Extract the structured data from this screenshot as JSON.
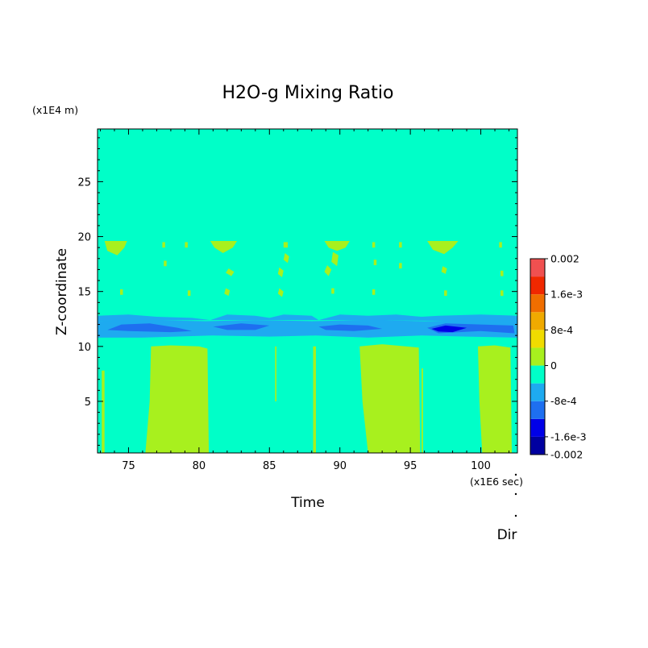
{
  "chart_data": {
    "type": "heatmap",
    "title": "H2O-g Mixing Ratio",
    "xlabel": "Time",
    "ylabel": "Z-coordinate",
    "x_unit": "(x1E6 sec)",
    "y_unit": "(x1E4 m)",
    "corner_label": "Dir",
    "xlim": [
      72.8,
      102.6
    ],
    "ylim": [
      0.3,
      29.8
    ],
    "x_ticks": [
      75,
      80,
      85,
      90,
      95,
      100
    ],
    "y_ticks": [
      5,
      10,
      15,
      20,
      25
    ],
    "colorbar": {
      "labels": [
        "0.002",
        "1.6e-3",
        "8e-4",
        "0",
        "-8e-4",
        "-1.6e-3",
        "-0.002"
      ],
      "label_values": [
        0.002,
        0.0016,
        0.0008,
        0,
        -0.0008,
        -0.0016,
        -0.002
      ],
      "levels": [
        {
          "from": -0.002,
          "to": -0.0016,
          "color": "#0000a0"
        },
        {
          "from": -0.0016,
          "to": -0.0012,
          "color": "#0000e8"
        },
        {
          "from": -0.0012,
          "to": -0.0008,
          "color": "#1e6ff0"
        },
        {
          "from": -0.0008,
          "to": -0.0004,
          "color": "#1eaaf0"
        },
        {
          "from": -0.0004,
          "to": 0,
          "color": "#00ffc8"
        },
        {
          "from": 0,
          "to": 0.0004,
          "color": "#a8f01e"
        },
        {
          "from": 0.0004,
          "to": 0.0008,
          "color": "#f0dc00"
        },
        {
          "from": 0.0008,
          "to": 0.0012,
          "color": "#f0aa00"
        },
        {
          "from": 0.0012,
          "to": 0.0016,
          "color": "#f06e00"
        },
        {
          "from": 0.0016,
          "to": 0.002,
          "color": "#f02800"
        },
        {
          "from": 0.002,
          "to": 0.0024,
          "color": "#f05050"
        }
      ]
    },
    "background_color": "#00ffc8",
    "regions": [
      {
        "level": 5,
        "pts": [
          [
            73.1,
            0.3
          ],
          [
            73.1,
            7.8
          ],
          [
            73.3,
            7.8
          ],
          [
            73.3,
            0.3
          ]
        ]
      },
      {
        "level": 5,
        "pts": [
          [
            76.2,
            0.3
          ],
          [
            76.5,
            5
          ],
          [
            76.6,
            10
          ],
          [
            78,
            10.1
          ],
          [
            80,
            10
          ],
          [
            80.6,
            9.8
          ],
          [
            80.7,
            0.3
          ]
        ]
      },
      {
        "level": 5,
        "pts": [
          [
            85.4,
            5
          ],
          [
            85.4,
            10
          ],
          [
            85.5,
            10
          ],
          [
            85.5,
            5
          ]
        ]
      },
      {
        "level": 5,
        "pts": [
          [
            88.1,
            0.3
          ],
          [
            88.1,
            10
          ],
          [
            88.3,
            10
          ],
          [
            88.3,
            0.3
          ]
        ]
      },
      {
        "level": 5,
        "pts": [
          [
            92,
            0.3
          ],
          [
            91.6,
            5
          ],
          [
            91.4,
            10
          ],
          [
            93,
            10.2
          ],
          [
            95.6,
            9.9
          ],
          [
            95.7,
            0.3
          ]
        ]
      },
      {
        "level": 5,
        "pts": [
          [
            95.8,
            0.3
          ],
          [
            95.8,
            8
          ],
          [
            95.9,
            8
          ],
          [
            95.9,
            0.3
          ]
        ]
      },
      {
        "level": 5,
        "pts": [
          [
            100.1,
            0.3
          ],
          [
            99.9,
            5
          ],
          [
            99.8,
            10
          ],
          [
            101,
            10.1
          ],
          [
            102.1,
            9.9
          ],
          [
            102.2,
            0.3
          ]
        ]
      },
      {
        "level": 3,
        "pts": [
          [
            72.8,
            10.8
          ],
          [
            72.8,
            12.3
          ],
          [
            76,
            12.4
          ],
          [
            80.5,
            12.3
          ],
          [
            84,
            12.4
          ],
          [
            88,
            12.3
          ],
          [
            92,
            12.4
          ],
          [
            96,
            12.3
          ],
          [
            100,
            12.4
          ],
          [
            102.6,
            12.3
          ],
          [
            102.6,
            10.8
          ],
          [
            99,
            10.9
          ],
          [
            95.8,
            11
          ],
          [
            92,
            10.8
          ],
          [
            88.3,
            11
          ],
          [
            85,
            10.9
          ],
          [
            81,
            11
          ],
          [
            76,
            10.8
          ]
        ]
      },
      {
        "level": 3,
        "pts": [
          [
            72.8,
            12.3
          ],
          [
            72.8,
            12.8
          ],
          [
            75,
            12.9
          ],
          [
            77,
            12.7
          ],
          [
            79.5,
            12.6
          ],
          [
            80.8,
            12.4
          ]
        ]
      },
      {
        "level": 3,
        "pts": [
          [
            80.8,
            12.4
          ],
          [
            82,
            12.9
          ],
          [
            84,
            12.8
          ],
          [
            85,
            12.6
          ],
          [
            86,
            12.9
          ],
          [
            88,
            12.8
          ],
          [
            88.5,
            12.4
          ]
        ]
      },
      {
        "level": 3,
        "pts": [
          [
            88.5,
            12.4
          ],
          [
            90,
            12.9
          ],
          [
            92,
            12.8
          ],
          [
            94,
            12.9
          ],
          [
            95.8,
            12.7
          ],
          [
            97,
            12.8
          ],
          [
            100,
            12.9
          ],
          [
            102.6,
            12.8
          ],
          [
            102.6,
            12.3
          ]
        ]
      },
      {
        "level": 2,
        "pts": [
          [
            73.5,
            11.5
          ],
          [
            74.5,
            12
          ],
          [
            76.5,
            12.1
          ],
          [
            78.5,
            11.7
          ],
          [
            79.5,
            11.4
          ],
          [
            78,
            11.3
          ],
          [
            75,
            11.4
          ]
        ]
      },
      {
        "level": 2,
        "pts": [
          [
            81,
            11.8
          ],
          [
            83,
            12.1
          ],
          [
            85,
            11.9
          ],
          [
            84,
            11.5
          ],
          [
            82,
            11.5
          ]
        ]
      },
      {
        "level": 2,
        "pts": [
          [
            88.5,
            11.8
          ],
          [
            90,
            12
          ],
          [
            92,
            11.9
          ],
          [
            93,
            11.6
          ],
          [
            91,
            11.4
          ],
          [
            89,
            11.5
          ]
        ]
      },
      {
        "level": 2,
        "pts": [
          [
            96.2,
            11.7
          ],
          [
            97.5,
            12.1
          ],
          [
            100,
            12
          ],
          [
            102.3,
            11.9
          ],
          [
            102.4,
            11.2
          ],
          [
            100,
            11.4
          ],
          [
            97,
            11.2
          ]
        ]
      },
      {
        "level": 1,
        "pts": [
          [
            96.5,
            11.6
          ],
          [
            97.5,
            11.9
          ],
          [
            99,
            11.7
          ],
          [
            98,
            11.3
          ],
          [
            97,
            11.35
          ]
        ]
      },
      {
        "level": 5,
        "pts": [
          [
            73.3,
            19.6
          ],
          [
            74.9,
            19.6
          ],
          [
            74.7,
            19
          ],
          [
            74.2,
            18.3
          ],
          [
            73.5,
            18.7
          ]
        ]
      },
      {
        "level": 5,
        "pts": [
          [
            80.8,
            19.6
          ],
          [
            82.7,
            19.6
          ],
          [
            82.4,
            19
          ],
          [
            81.7,
            18.5
          ],
          [
            81.1,
            19
          ]
        ]
      },
      {
        "level": 5,
        "pts": [
          [
            88.9,
            19.6
          ],
          [
            90.7,
            19.6
          ],
          [
            90.4,
            19
          ],
          [
            89.8,
            18.7
          ],
          [
            89.2,
            19
          ]
        ]
      },
      {
        "level": 5,
        "pts": [
          [
            96.2,
            19.6
          ],
          [
            98.4,
            19.6
          ],
          [
            98,
            19
          ],
          [
            97.4,
            18.4
          ],
          [
            96.6,
            18.8
          ]
        ]
      },
      {
        "level": 5,
        "pts": [
          [
            77.4,
            19.5
          ],
          [
            77.6,
            19.5
          ],
          [
            77.6,
            19
          ],
          [
            77.4,
            19
          ]
        ]
      },
      {
        "level": 5,
        "pts": [
          [
            79.0,
            19.5
          ],
          [
            79.2,
            19.5
          ],
          [
            79.2,
            19
          ],
          [
            79.0,
            19
          ]
        ]
      },
      {
        "level": 5,
        "pts": [
          [
            86.0,
            19.5
          ],
          [
            86.3,
            19.5
          ],
          [
            86.3,
            19
          ],
          [
            86.0,
            19
          ]
        ]
      },
      {
        "level": 5,
        "pts": [
          [
            92.3,
            19.5
          ],
          [
            92.5,
            19.5
          ],
          [
            92.5,
            19
          ],
          [
            92.3,
            19
          ]
        ]
      },
      {
        "level": 5,
        "pts": [
          [
            94.2,
            19.5
          ],
          [
            94.4,
            19.5
          ],
          [
            94.4,
            19
          ],
          [
            94.2,
            19
          ]
        ]
      },
      {
        "level": 5,
        "pts": [
          [
            101.3,
            19.5
          ],
          [
            101.5,
            19.5
          ],
          [
            101.5,
            19
          ],
          [
            101.3,
            19
          ]
        ]
      },
      {
        "level": 5,
        "pts": [
          [
            86.1,
            18.5
          ],
          [
            86.4,
            18.2
          ],
          [
            86.3,
            17.6
          ],
          [
            86.0,
            17.9
          ]
        ]
      },
      {
        "level": 5,
        "pts": [
          [
            85.7,
            17.2
          ],
          [
            86.0,
            16.9
          ],
          [
            85.9,
            16.3
          ],
          [
            85.6,
            16.6
          ]
        ]
      },
      {
        "level": 5,
        "pts": [
          [
            89.5,
            18.6
          ],
          [
            89.9,
            18.3
          ],
          [
            89.8,
            17.3
          ],
          [
            89.4,
            17.7
          ]
        ]
      },
      {
        "level": 5,
        "pts": [
          [
            89.1,
            17.4
          ],
          [
            89.4,
            17
          ],
          [
            89.2,
            16.4
          ],
          [
            88.9,
            16.8
          ]
        ]
      },
      {
        "level": 5,
        "pts": [
          [
            82.1,
            17.1
          ],
          [
            82.5,
            16.8
          ],
          [
            82.3,
            16.4
          ],
          [
            81.9,
            16.7
          ]
        ]
      },
      {
        "level": 5,
        "pts": [
          [
            77.5,
            17.8
          ],
          [
            77.7,
            17.8
          ],
          [
            77.7,
            17.3
          ],
          [
            77.5,
            17.3
          ]
        ]
      },
      {
        "level": 5,
        "pts": [
          [
            92.4,
            17.9
          ],
          [
            92.6,
            17.9
          ],
          [
            92.6,
            17.4
          ],
          [
            92.4,
            17.4
          ]
        ]
      },
      {
        "level": 5,
        "pts": [
          [
            94.2,
            17.6
          ],
          [
            94.4,
            17.6
          ],
          [
            94.4,
            17.1
          ],
          [
            94.2,
            17.1
          ]
        ]
      },
      {
        "level": 5,
        "pts": [
          [
            97.3,
            17.3
          ],
          [
            97.6,
            17.1
          ],
          [
            97.5,
            16.6
          ],
          [
            97.2,
            16.8
          ]
        ]
      },
      {
        "level": 5,
        "pts": [
          [
            101.4,
            16.9
          ],
          [
            101.6,
            16.9
          ],
          [
            101.6,
            16.4
          ],
          [
            101.4,
            16.4
          ]
        ]
      },
      {
        "level": 5,
        "pts": [
          [
            74.4,
            15.2
          ],
          [
            74.6,
            15.2
          ],
          [
            74.6,
            14.7
          ],
          [
            74.4,
            14.7
          ]
        ]
      },
      {
        "level": 5,
        "pts": [
          [
            79.2,
            15.1
          ],
          [
            79.4,
            15.1
          ],
          [
            79.4,
            14.6
          ],
          [
            79.2,
            14.6
          ]
        ]
      },
      {
        "level": 5,
        "pts": [
          [
            81.9,
            15.3
          ],
          [
            82.2,
            15.1
          ],
          [
            82.1,
            14.6
          ],
          [
            81.8,
            14.8
          ]
        ]
      },
      {
        "level": 5,
        "pts": [
          [
            85.7,
            15.3
          ],
          [
            86,
            15
          ],
          [
            85.9,
            14.5
          ],
          [
            85.6,
            14.8
          ]
        ]
      },
      {
        "level": 5,
        "pts": [
          [
            89.4,
            15.3
          ],
          [
            89.6,
            15.3
          ],
          [
            89.6,
            14.8
          ],
          [
            89.4,
            14.8
          ]
        ]
      },
      {
        "level": 5,
        "pts": [
          [
            92.3,
            15.2
          ],
          [
            92.5,
            15.2
          ],
          [
            92.5,
            14.7
          ],
          [
            92.3,
            14.7
          ]
        ]
      },
      {
        "level": 5,
        "pts": [
          [
            97.4,
            15.1
          ],
          [
            97.6,
            15.1
          ],
          [
            97.6,
            14.6
          ],
          [
            97.4,
            14.6
          ]
        ]
      },
      {
        "level": 5,
        "pts": [
          [
            101.4,
            15.1
          ],
          [
            101.6,
            15.1
          ],
          [
            101.6,
            14.6
          ],
          [
            101.4,
            14.6
          ]
        ]
      }
    ]
  }
}
